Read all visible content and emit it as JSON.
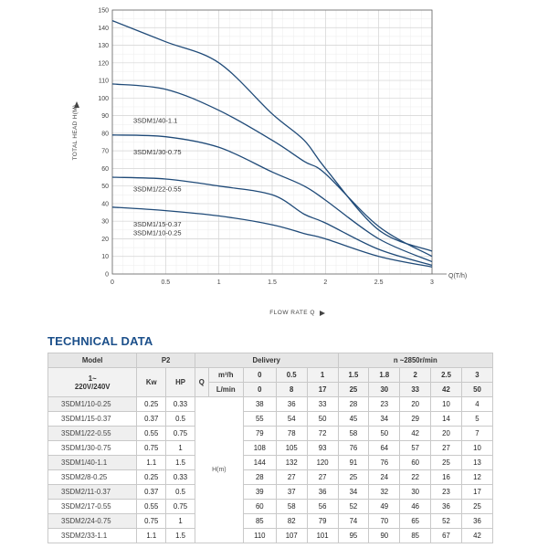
{
  "chart_data": {
    "type": "line",
    "xlabel": "FLOW RATE Q",
    "ylabel": "TOTAL HEAD H(M)",
    "x_axis_unit": "Q(T/h)",
    "xlim": [
      0,
      3
    ],
    "ylim": [
      0,
      150
    ],
    "x_ticks": [
      "0",
      "0.5",
      "1",
      "1.5",
      "2",
      "2.5",
      "3"
    ],
    "y_ticks": [
      "0",
      "10",
      "20",
      "30",
      "40",
      "50",
      "60",
      "70",
      "80",
      "90",
      "100",
      "110",
      "120",
      "130",
      "140",
      "150"
    ],
    "grid": true,
    "series": [
      {
        "name": "3SDM1/40-1.1",
        "x": [
          0,
          0.5,
          1,
          1.5,
          1.8,
          2,
          2.5,
          3
        ],
        "y": [
          144,
          132,
          120,
          91,
          76,
          60,
          25,
          13
        ]
      },
      {
        "name": "3SDM1/30-0.75",
        "x": [
          0,
          0.5,
          1,
          1.5,
          1.8,
          2,
          2.5,
          3
        ],
        "y": [
          108,
          105,
          93,
          76,
          64,
          57,
          27,
          10
        ]
      },
      {
        "name": "3SDM1/22-0.55",
        "x": [
          0,
          0.5,
          1,
          1.5,
          1.8,
          2,
          2.5,
          3
        ],
        "y": [
          79,
          78,
          72,
          58,
          50,
          42,
          20,
          7
        ]
      },
      {
        "name": "3SDM1/15-0.37",
        "x": [
          0,
          0.5,
          1,
          1.5,
          1.8,
          2,
          2.5,
          3
        ],
        "y": [
          55,
          54,
          50,
          45,
          34,
          29,
          14,
          5
        ]
      },
      {
        "name": "3SDM1/10-0.25",
        "x": [
          0,
          0.5,
          1,
          1.5,
          1.8,
          2,
          2.5,
          3
        ],
        "y": [
          38,
          36,
          33,
          28,
          23,
          20,
          10,
          4
        ]
      }
    ],
    "colors": {
      "line": "#1f4a78",
      "grid": "#d4d4d4",
      "axis": "#666666"
    }
  },
  "technical": {
    "title": "TECHNICAL DATA",
    "header": {
      "model": "Model",
      "p2": "P2",
      "delivery": "Delivery",
      "speed": "n ~2850r/min",
      "voltage_line1": "1~",
      "voltage_line2": "220V/240V",
      "kw": "Kw",
      "hp": "HP",
      "q": "Q",
      "m3h": "m³/h",
      "lmin": "L/min"
    },
    "m3h_values": [
      "0",
      "0.5",
      "1",
      "1.5",
      "1.8",
      "2",
      "2.5",
      "3"
    ],
    "lmin_values": [
      "0",
      "8",
      "17",
      "25",
      "30",
      "33",
      "42",
      "50"
    ],
    "h_label": "H(m)",
    "rows": [
      {
        "model": "3SDM1/10-0.25",
        "kw": "0.25",
        "hp": "0.33",
        "h": [
          "38",
          "36",
          "33",
          "28",
          "23",
          "20",
          "10",
          "4"
        ]
      },
      {
        "model": "3SDM1/15-0.37",
        "kw": "0.37",
        "hp": "0.5",
        "h": [
          "55",
          "54",
          "50",
          "45",
          "34",
          "29",
          "14",
          "5"
        ]
      },
      {
        "model": "3SDM1/22-0.55",
        "kw": "0.55",
        "hp": "0.75",
        "h": [
          "79",
          "78",
          "72",
          "58",
          "50",
          "42",
          "20",
          "7"
        ]
      },
      {
        "model": "3SDM1/30-0.75",
        "kw": "0.75",
        "hp": "1",
        "h": [
          "108",
          "105",
          "93",
          "76",
          "64",
          "57",
          "27",
          "10"
        ]
      },
      {
        "model": "3SDM1/40-1.1",
        "kw": "1.1",
        "hp": "1.5",
        "h": [
          "144",
          "132",
          "120",
          "91",
          "76",
          "60",
          "25",
          "13"
        ]
      },
      {
        "model": "3SDM2/8-0.25",
        "kw": "0.25",
        "hp": "0.33",
        "h": [
          "28",
          "27",
          "27",
          "25",
          "24",
          "22",
          "16",
          "12"
        ]
      },
      {
        "model": "3SDM2/11-0.37",
        "kw": "0.37",
        "hp": "0.5",
        "h": [
          "39",
          "37",
          "36",
          "34",
          "32",
          "30",
          "23",
          "17"
        ]
      },
      {
        "model": "3SDM2/17-0.55",
        "kw": "0.55",
        "hp": "0.75",
        "h": [
          "60",
          "58",
          "56",
          "52",
          "49",
          "46",
          "36",
          "25"
        ]
      },
      {
        "model": "3SDM2/24-0.75",
        "kw": "0.75",
        "hp": "1",
        "h": [
          "85",
          "82",
          "79",
          "74",
          "70",
          "65",
          "52",
          "36"
        ]
      },
      {
        "model": "3SDM2/33-1.1",
        "kw": "1.1",
        "hp": "1.5",
        "h": [
          "110",
          "107",
          "101",
          "95",
          "90",
          "85",
          "67",
          "42"
        ]
      }
    ]
  }
}
